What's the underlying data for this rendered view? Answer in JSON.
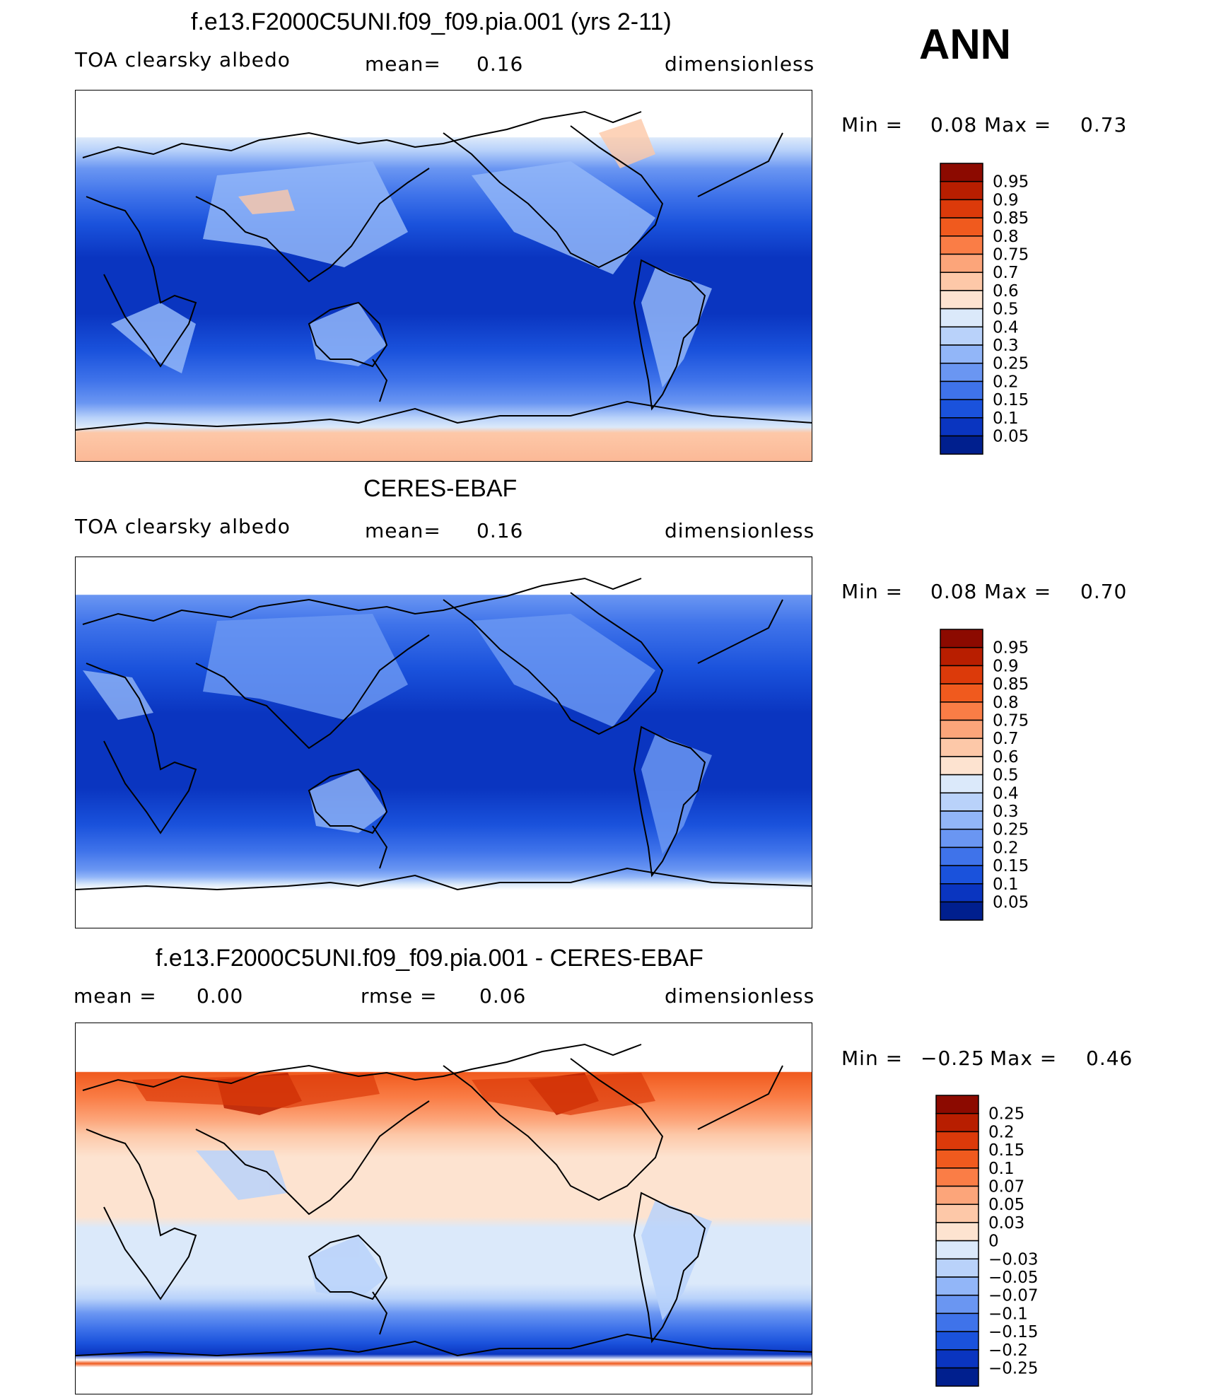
{
  "season": "ANN",
  "panels": [
    {
      "id": "model",
      "title": "f.e13.F2000C5UNI.f09_f09.pia.001 (yrs 2-11)",
      "left_label": "TOA clearsky albedo",
      "middle_label": "mean=",
      "middle_value": "0.16",
      "right_label": "dimensionless",
      "min_label": "Min =",
      "min_value": "0.08",
      "max_label": "Max =",
      "max_value": "0.73"
    },
    {
      "id": "obs",
      "title": "CERES-EBAF",
      "left_label": "TOA clearsky albedo",
      "middle_label": "mean=",
      "middle_value": "0.16",
      "right_label": "dimensionless",
      "min_label": "Min =",
      "min_value": "0.08",
      "max_label": "Max =",
      "max_value": "0.70"
    },
    {
      "id": "diff",
      "title": "f.e13.F2000C5UNI.f09_f09.pia.001 - CERES-EBAF",
      "left_label": "mean =",
      "left_value": "0.00",
      "middle_label": "rmse =",
      "middle_value": "0.06",
      "right_label": "dimensionless",
      "min_label": "Min =",
      "min_value": "−0.25",
      "max_label": "Max =",
      "max_value": "0.46"
    }
  ],
  "chart_data": [
    {
      "type": "heatmap",
      "title": "f.e13.F2000C5UNI.f09_f09.pia.001 (yrs 2-11)",
      "variable": "TOA clearsky albedo",
      "units": "dimensionless",
      "mean": 0.16,
      "min": 0.08,
      "max": 0.73,
      "legend_placement": "right",
      "colorbar_levels": [
        "0.95",
        "0.9",
        "0.85",
        "0.8",
        "0.75",
        "0.7",
        "0.6",
        "0.5",
        "0.4",
        "0.3",
        "0.25",
        "0.2",
        "0.15",
        "0.1",
        "0.05"
      ],
      "colorbar_colors": [
        "#8c0a00",
        "#b81e00",
        "#dc3a0a",
        "#f05a1e",
        "#fa7d46",
        "#fca57a",
        "#fdc8a8",
        "#fde3d0",
        "#dbe9fa",
        "#b9d2fa",
        "#92b6f8",
        "#6a96f2",
        "#3f73ea",
        "#1a52dc",
        "#0a35c0",
        "#001f8e"
      ]
    },
    {
      "type": "heatmap",
      "title": "CERES-EBAF",
      "variable": "TOA clearsky albedo",
      "units": "dimensionless",
      "mean": 0.16,
      "min": 0.08,
      "max": 0.7,
      "legend_placement": "right",
      "colorbar_levels": [
        "0.95",
        "0.9",
        "0.85",
        "0.8",
        "0.75",
        "0.7",
        "0.6",
        "0.5",
        "0.4",
        "0.3",
        "0.25",
        "0.2",
        "0.15",
        "0.1",
        "0.05"
      ],
      "colorbar_colors": [
        "#8c0a00",
        "#b81e00",
        "#dc3a0a",
        "#f05a1e",
        "#fa7d46",
        "#fca57a",
        "#fdc8a8",
        "#fde3d0",
        "#dbe9fa",
        "#b9d2fa",
        "#92b6f8",
        "#6a96f2",
        "#3f73ea",
        "#1a52dc",
        "#0a35c0",
        "#001f8e"
      ]
    },
    {
      "type": "heatmap",
      "title": "f.e13.F2000C5UNI.f09_f09.pia.001 - CERES-EBAF",
      "units": "dimensionless",
      "mean": 0.0,
      "rmse": 0.06,
      "min": -0.25,
      "max": 0.46,
      "legend_placement": "right",
      "colorbar_levels": [
        "0.25",
        "0.2",
        "0.15",
        "0.1",
        "0.07",
        "0.05",
        "0.03",
        "0",
        "−0.03",
        "−0.05",
        "−0.07",
        "−0.1",
        "−0.15",
        "−0.2",
        "−0.25"
      ],
      "colorbar_colors": [
        "#8c0a00",
        "#b81e00",
        "#dc3a0a",
        "#f05a1e",
        "#fa7d46",
        "#fca57a",
        "#fdc8a8",
        "#fde3d0",
        "#dbe9fa",
        "#b9d2fa",
        "#92b6f8",
        "#6a96f2",
        "#3f73ea",
        "#1a52dc",
        "#0a35c0",
        "#001f8e"
      ]
    }
  ]
}
